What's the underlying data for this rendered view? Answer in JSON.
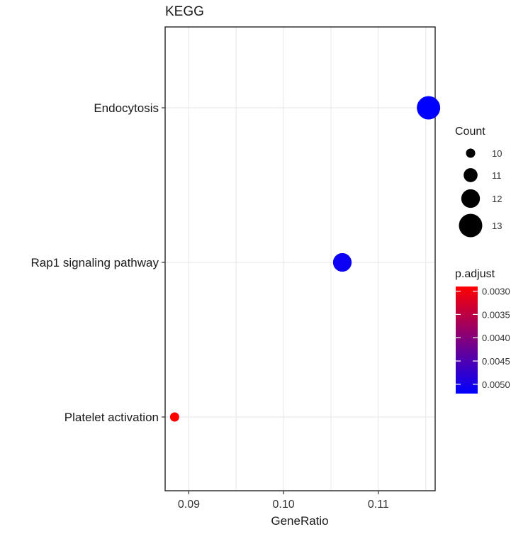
{
  "chart_data": {
    "type": "scatter",
    "title": "KEGG",
    "xlabel": "GeneRatio",
    "ylabel": "",
    "xlim": [
      0.0875,
      0.116
    ],
    "x_ticks": [
      0.09,
      0.1,
      0.11
    ],
    "x_tick_labels": [
      "0.09",
      "0.10",
      "0.11"
    ],
    "categories": [
      "Platelet activation",
      "Rap1 signaling pathway",
      "Endocytosis"
    ],
    "points": [
      {
        "term": "Endocytosis",
        "gene_ratio": 0.1153,
        "count": 13,
        "p_adjust": 0.0052
      },
      {
        "term": "Rap1 signaling pathway",
        "gene_ratio": 0.1062,
        "count": 12,
        "p_adjust": 0.0051
      },
      {
        "term": "Platelet activation",
        "gene_ratio": 0.0885,
        "count": 10,
        "p_adjust": 0.0029
      }
    ],
    "grid": true,
    "size_legend": {
      "title": "Count",
      "entries": [
        {
          "value": 10,
          "label": "10"
        },
        {
          "value": 11,
          "label": "11"
        },
        {
          "value": 12,
          "label": "12"
        },
        {
          "value": 13,
          "label": "13"
        }
      ]
    },
    "color_legend": {
      "title": "p.adjust",
      "range": [
        0.0029,
        0.0052
      ],
      "low_color": "#ff0000",
      "high_color": "#0000ff",
      "ticks": [
        {
          "value": 0.003,
          "label": "0.0030"
        },
        {
          "value": 0.0035,
          "label": "0.0035"
        },
        {
          "value": 0.004,
          "label": "0.0040"
        },
        {
          "value": 0.0045,
          "label": "0.0045"
        },
        {
          "value": 0.005,
          "label": "0.0050"
        }
      ]
    },
    "legend_position": "right"
  }
}
